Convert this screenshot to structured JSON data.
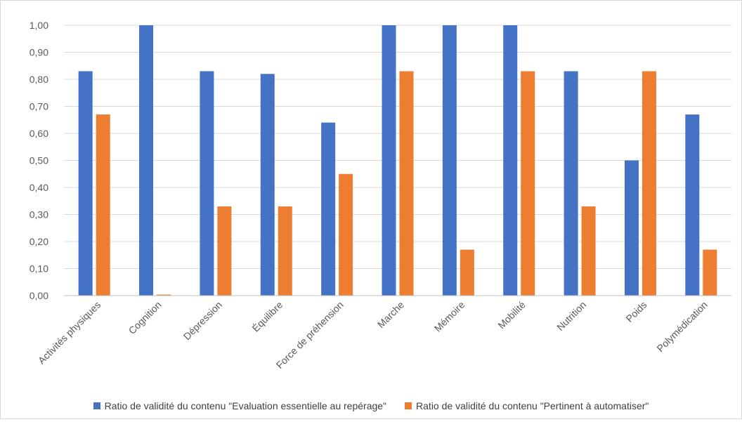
{
  "chart_data": {
    "type": "bar",
    "title": "",
    "xlabel": "",
    "ylabel": "",
    "ylim": [
      0,
      1
    ],
    "yticks": [
      "0,00",
      "0,10",
      "0,20",
      "0,30",
      "0,40",
      "0,50",
      "0,60",
      "0,70",
      "0,80",
      "0,90",
      "1,00"
    ],
    "grid": true,
    "legend_position": "bottom",
    "categories": [
      "Activités physiques",
      "Cognition",
      "Dépression",
      "Équilibre",
      "Force de préhension",
      "Marche",
      "Mémoire",
      "Mobilité",
      "Nutrition",
      "Poids",
      "Polymédication"
    ],
    "series": [
      {
        "name": "Ratio de validité du contenu \"Evaluation essentielle au repérage\"",
        "color": "#4472c4",
        "values": [
          0.83,
          1.0,
          0.83,
          0.82,
          0.64,
          1.0,
          1.0,
          1.0,
          0.83,
          0.5,
          0.67
        ]
      },
      {
        "name": "Ratio de validité du contenu \"Pertinent à automatiser\"",
        "color": "#ed7d31",
        "values": [
          0.67,
          0.0,
          0.33,
          0.33,
          0.45,
          0.83,
          0.17,
          0.83,
          0.33,
          0.83,
          0.17
        ]
      }
    ]
  }
}
